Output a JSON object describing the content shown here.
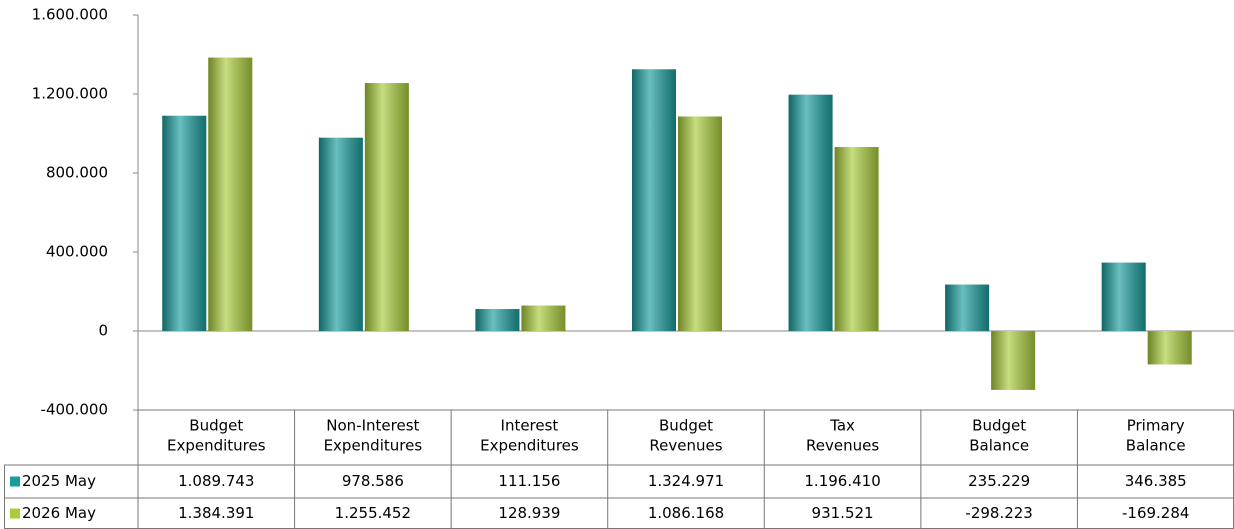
{
  "chart_data": {
    "type": "bar",
    "categories": [
      [
        "Budget",
        "Expenditures"
      ],
      [
        "Non-Interest",
        "Expenditures"
      ],
      [
        "Interest",
        "Expenditures"
      ],
      [
        "Budget",
        "Revenues"
      ],
      [
        "Tax",
        "Revenues"
      ],
      [
        "Budget",
        "Balance"
      ],
      [
        "Primary",
        "Balance"
      ]
    ],
    "series": [
      {
        "name": "2025 May",
        "color": "#1a9c9c",
        "values": [
          1089743,
          978586,
          111156,
          1324971,
          1196410,
          235229,
          346385
        ],
        "value_labels": [
          "1.089.743",
          "978.586",
          "111.156",
          "1.324.971",
          "1.196.410",
          "235.229",
          "346.385"
        ]
      },
      {
        "name": "2026 May",
        "color": "#a9cc3c",
        "values": [
          1384391,
          1255452,
          128939,
          1086168,
          931521,
          -298223,
          -169284
        ],
        "value_labels": [
          "1.384.391",
          "1.255.452",
          "128.939",
          "1.086.168",
          "931.521",
          "-298.223",
          "-169.284"
        ]
      }
    ],
    "ylim": [
      -400000,
      1600000
    ],
    "yticks": [
      {
        "value": -400000,
        "label": "-400.000"
      },
      0,
      {
        "value": 400000,
        "label": "400.000"
      },
      {
        "value": 800000,
        "label": "800.000"
      },
      {
        "value": 1200000,
        "label": "1.200.000"
      },
      {
        "value": 1600000,
        "label": "1.600.000"
      }
    ],
    "grid": false
  }
}
